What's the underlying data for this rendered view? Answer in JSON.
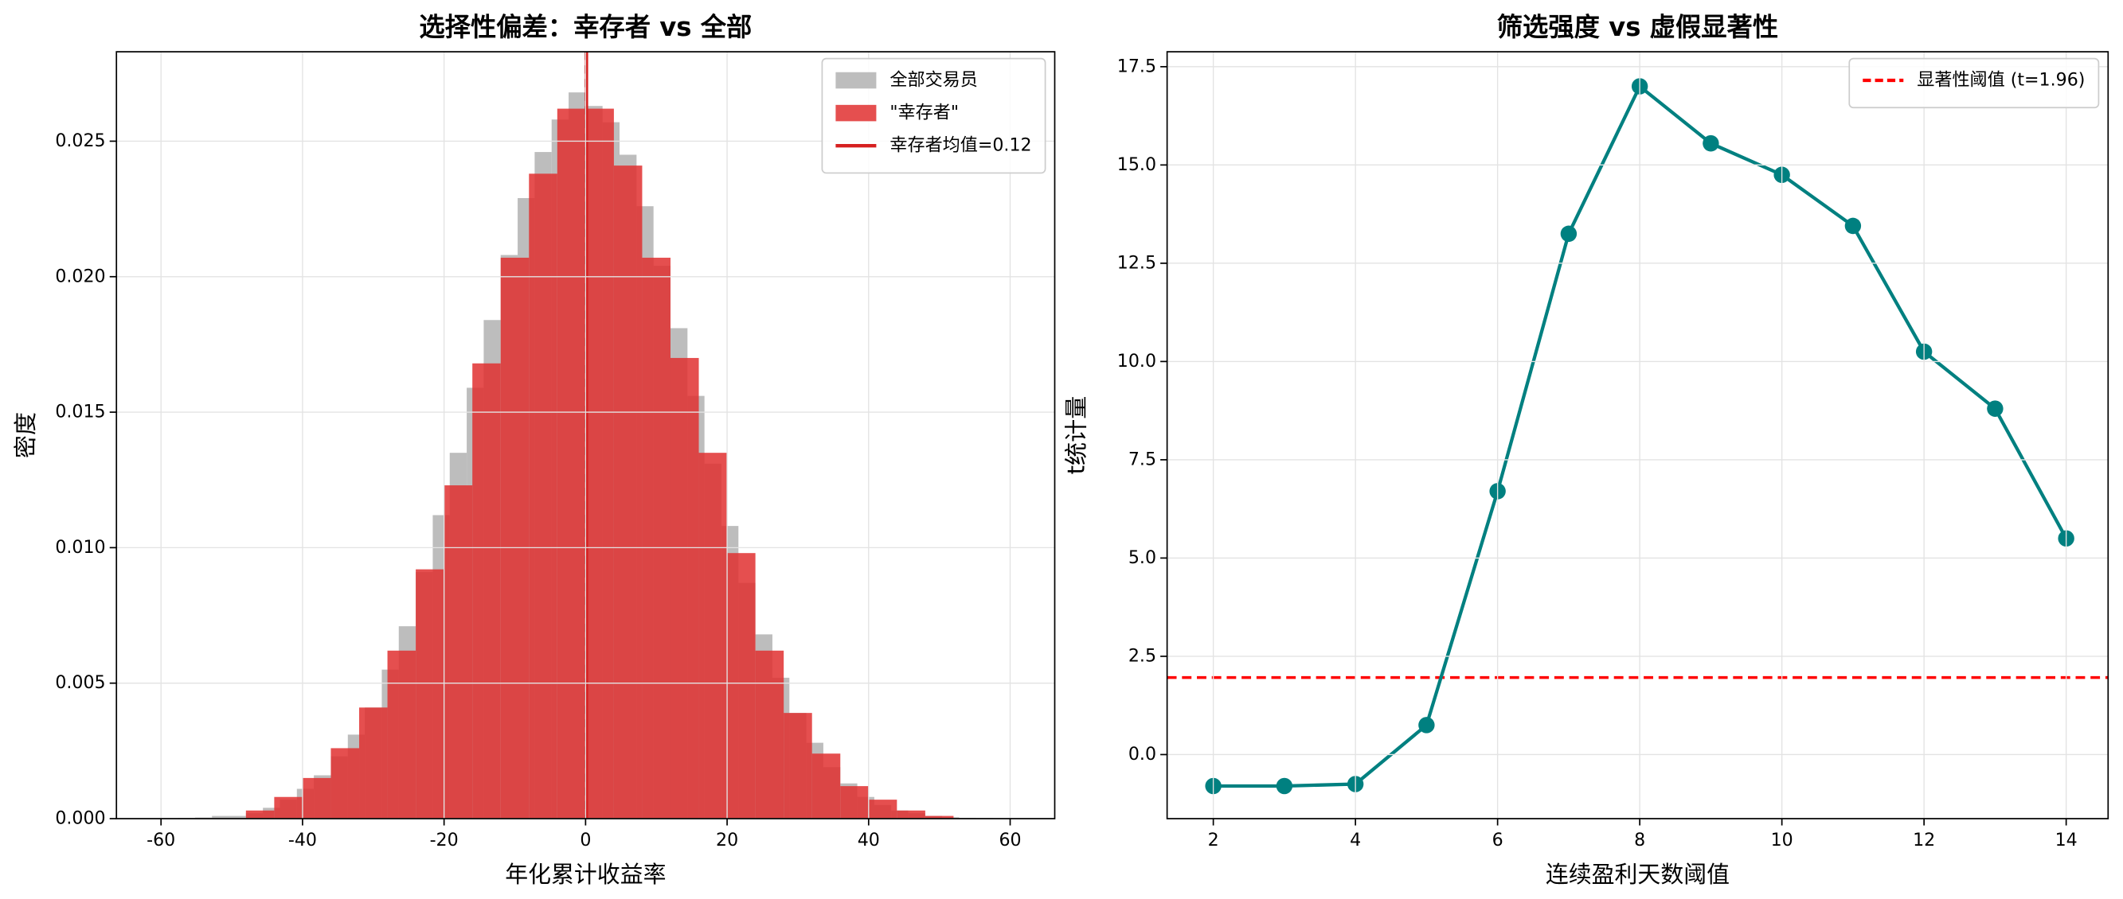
{
  "chart_data": [
    {
      "type": "histogram",
      "title": "选择性偏差：幸存者 vs 全部",
      "xlabel": "年化累计收益率",
      "ylabel": "密度",
      "xlim": [
        -66.3,
        66.3
      ],
      "ylim": [
        0,
        0.0283
      ],
      "xticks": [
        -60,
        -40,
        -20,
        0,
        20,
        40,
        60
      ],
      "yticks": [
        {
          "value": 0,
          "label": "0.000"
        },
        0.005,
        {
          "value": 0.01,
          "label": "0.010"
        },
        0.015,
        {
          "value": 0.02,
          "label": "0.020"
        },
        0.025
      ],
      "grid": true,
      "legend": "upper right",
      "series": [
        {
          "name": "全部交易员",
          "color": "#bdbdbd",
          "opacity": 1,
          "bins": [
            -60,
            -57.6,
            -55.2,
            -52.8,
            -50.4,
            -48,
            -45.6,
            -43.2,
            -40.8,
            -38.4,
            -36,
            -33.6,
            -31.2,
            -28.8,
            -26.4,
            -24,
            -21.6,
            -19.2,
            -16.8,
            -14.4,
            -12,
            -9.6,
            -7.2,
            -4.8,
            -2.4,
            0,
            2.4,
            4.8,
            7.2,
            9.6,
            12,
            14.4,
            16.8,
            19.2,
            21.6,
            24,
            26.4,
            28.8,
            31.2,
            33.6,
            36,
            38.4,
            40.8,
            43.2,
            45.6,
            48,
            50.4,
            52.8,
            55.2,
            57.6,
            60
          ],
          "values": [
            1e-05,
            2e-05,
            4e-05,
            0.0001,
            0.0001,
            0.0002,
            0.0004,
            0.0007,
            0.0011,
            0.0016,
            0.0023,
            0.0031,
            0.0041,
            0.0055,
            0.0071,
            0.0091,
            0.0112,
            0.0135,
            0.0159,
            0.0184,
            0.0208,
            0.0229,
            0.0246,
            0.0258,
            0.0268,
            0.0263,
            0.0257,
            0.0245,
            0.0226,
            0.0204,
            0.0181,
            0.0156,
            0.0131,
            0.0108,
            0.0087,
            0.0068,
            0.0052,
            0.0039,
            0.0028,
            0.0019,
            0.0013,
            0.0008,
            0.0005,
            0.0003,
            0.0002,
            0.0001,
            5e-05,
            3e-05,
            2e-05,
            1e-05
          ]
        },
        {
          "name": "\"幸存者\"",
          "color": "#e03030",
          "opacity": 0.85,
          "bins": [
            -48,
            -44,
            -40,
            -36,
            -32,
            -28,
            -24,
            -20,
            -16,
            -12,
            -8,
            -4,
            0,
            4,
            8,
            12,
            16,
            20,
            24,
            28,
            32,
            36,
            40,
            44,
            48,
            52
          ],
          "values": [
            0.0003,
            0.0008,
            0.0015,
            0.0026,
            0.0041,
            0.0062,
            0.0092,
            0.0123,
            0.0168,
            0.0207,
            0.0238,
            0.0262,
            0.0262,
            0.0241,
            0.0207,
            0.017,
            0.0135,
            0.0098,
            0.0062,
            0.0039,
            0.0024,
            0.0012,
            0.0007,
            0.0003,
            0.0001
          ]
        }
      ],
      "vlines": [
        {
          "value": 0,
          "color": "#8b1a1a",
          "dashed": true
        },
        {
          "name": "幸存者均值=0.12",
          "value": 0.12,
          "color": "#d62020",
          "dashed": false
        }
      ]
    },
    {
      "type": "line",
      "title": "筛选强度 vs 虚假显著性",
      "xlabel": "连续盈利天数阈值",
      "ylabel": "t统计量",
      "xlim": [
        1.35,
        14.59
      ],
      "ylim": [
        -1.63,
        17.88
      ],
      "xticks": [
        2,
        4,
        6,
        8,
        10,
        12,
        14
      ],
      "yticks": [
        {
          "value": 0,
          "label": "0.0"
        },
        2.5,
        {
          "value": 5,
          "label": "5.0"
        },
        7.5,
        {
          "value": 10,
          "label": "10.0"
        },
        12.5,
        {
          "value": 15,
          "label": "15.0"
        },
        17.5
      ],
      "grid": true,
      "legend": "upper right",
      "x": [
        2,
        3,
        4,
        5,
        6,
        7,
        8,
        9,
        10,
        11,
        12,
        13,
        14
      ],
      "values": [
        -0.8,
        -0.8,
        -0.75,
        0.75,
        6.7,
        13.25,
        17.0,
        15.55,
        14.75,
        13.45,
        10.25,
        8.8,
        5.5
      ],
      "color": "#008080",
      "hlines": [
        {
          "name": "显著性阈值 (t=1.96)",
          "value": 1.96,
          "color": "#ff0000",
          "dashed": true
        }
      ]
    }
  ]
}
